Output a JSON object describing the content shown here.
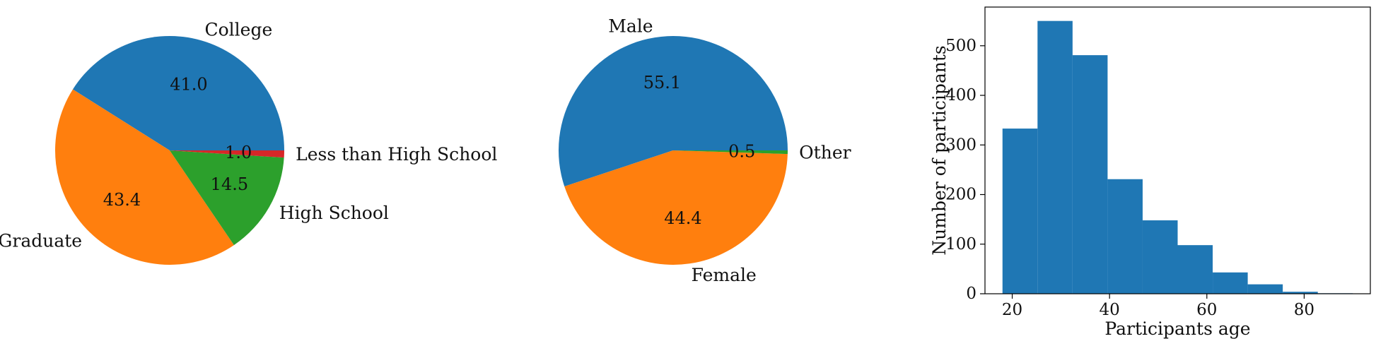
{
  "chart_data": [
    {
      "type": "pie",
      "labels": [
        "College",
        "Graduate",
        "High School",
        "Less than High School"
      ],
      "values": [
        41.0,
        43.4,
        14.5,
        1.0
      ],
      "pct_labels": [
        "41.0",
        "43.4",
        "14.5",
        "1.0"
      ],
      "colors": [
        "#1f77b4",
        "#ff7f0e",
        "#2ca02c",
        "#d62728"
      ],
      "start_angle_deg": 0,
      "direction": "counterclockwise"
    },
    {
      "type": "pie",
      "labels": [
        "Male",
        "Female",
        "Other"
      ],
      "values": [
        55.1,
        44.4,
        0.5
      ],
      "pct_labels": [
        "55.1",
        "44.4",
        "0.5"
      ],
      "colors": [
        "#1f77b4",
        "#ff7f0e",
        "#2ca02c"
      ],
      "start_angle_deg": 0,
      "direction": "counterclockwise"
    },
    {
      "type": "bar",
      "subtype": "histogram",
      "bin_edges": [
        18,
        25.2,
        32.4,
        39.6,
        46.8,
        54,
        61.2,
        68.4,
        75.6,
        82.8,
        90
      ],
      "values": [
        333,
        550,
        481,
        231,
        148,
        98,
        43,
        19,
        4,
        1
      ],
      "color": "#1f77b4",
      "xlabel": "Participants age",
      "ylabel": "Number of participants",
      "xlim": [
        14.4,
        93.6
      ],
      "ylim": [
        0,
        578
      ],
      "xticks": [
        20,
        40,
        60,
        80
      ],
      "xtick_labels": [
        "20",
        "40",
        "60",
        "80"
      ],
      "yticks": [
        0,
        100,
        200,
        300,
        400,
        500
      ],
      "ytick_labels": [
        "0",
        "100",
        "200",
        "300",
        "400",
        "500"
      ],
      "grid": false
    }
  ]
}
